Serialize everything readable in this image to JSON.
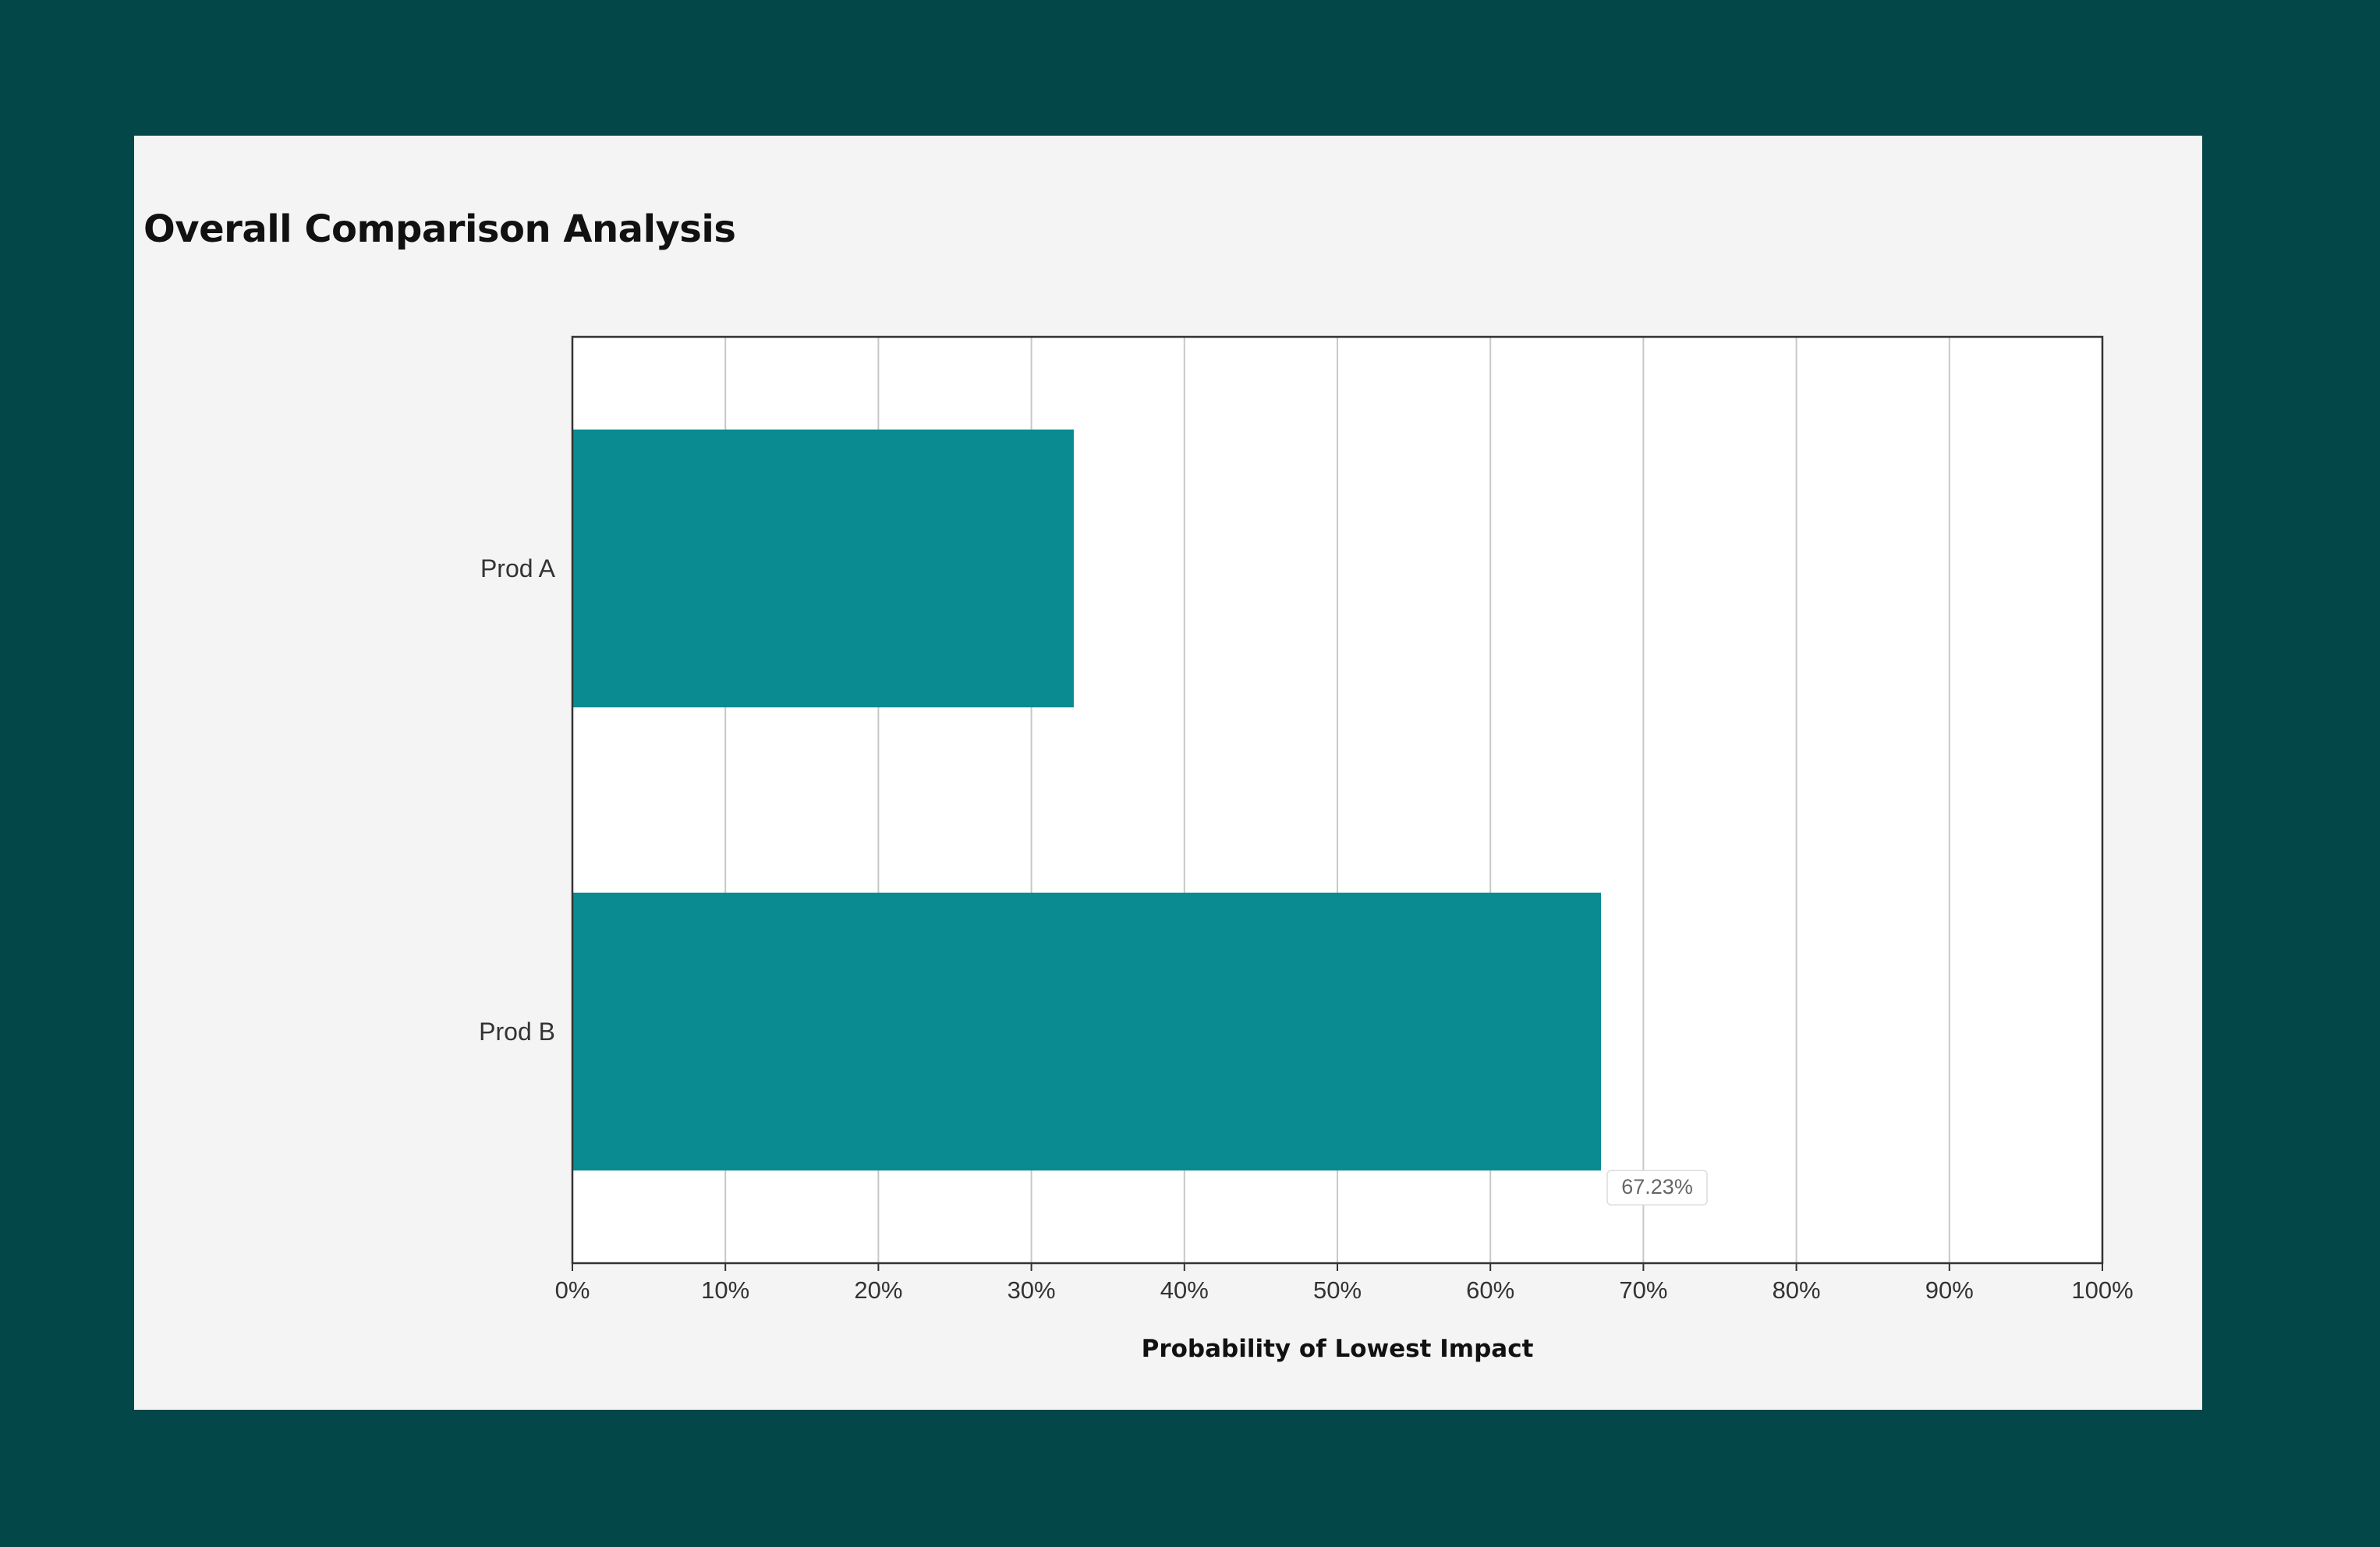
{
  "colors": {
    "frame": "#044749",
    "panel": "#f4f4f4",
    "plot_bg": "#ffffff",
    "bar": "#098b91",
    "grid": "#c8c8c8",
    "axis": "#333333"
  },
  "chart_data": {
    "type": "bar",
    "orientation": "horizontal",
    "title": "Overall Comparison Analysis",
    "xlabel": "Probability of Lowest Impact",
    "ylabel": "",
    "categories": [
      "Prod A",
      "Prod B"
    ],
    "values": [
      32.77,
      67.23
    ],
    "xlim": [
      0,
      100
    ],
    "x_ticks": [
      "0%",
      "10%",
      "20%",
      "30%",
      "40%",
      "50%",
      "60%",
      "70%",
      "80%",
      "90%",
      "100%"
    ],
    "grid": true,
    "legend": "none",
    "tooltip": {
      "category": "Prod B",
      "text": "67.23%"
    }
  }
}
